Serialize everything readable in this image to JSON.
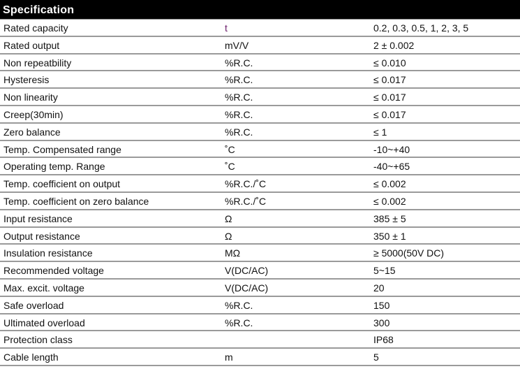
{
  "title": "Specification",
  "rows": [
    {
      "parameter": "Rated capacity",
      "unit": "t",
      "value": "0.2, 0.3, 0.5, 1, 2, 3, 5"
    },
    {
      "parameter": "Rated output",
      "unit": "mV/V",
      "value": "2 ± 0.002"
    },
    {
      "parameter": "Non repeatbility",
      "unit": "%R.C.",
      "value": "≤ 0.010"
    },
    {
      "parameter": "Hysteresis",
      "unit": "%R.C.",
      "value": "≤ 0.017"
    },
    {
      "parameter": "Non linearity",
      "unit": "%R.C.",
      "value": "≤ 0.017"
    },
    {
      "parameter": "Creep(30min)",
      "unit": "%R.C.",
      "value": "≤ 0.017"
    },
    {
      "parameter": "Zero balance",
      "unit": "%R.C.",
      "value": "≤ 1"
    },
    {
      "parameter": "Temp. Compensated range",
      "unit": "˚C",
      "value": "-10~+40"
    },
    {
      "parameter": "Operating temp. Range",
      "unit": "˚C",
      "value": "-40~+65"
    },
    {
      "parameter": "Temp. coefficient on output",
      "unit": "%R.C./˚C",
      "value": "≤ 0.002"
    },
    {
      "parameter": "Temp. coefficient on zero balance",
      "unit": "%R.C./˚C",
      "value": "≤ 0.002"
    },
    {
      "parameter": "Input resistance",
      "unit": "Ω",
      "value": "385 ± 5"
    },
    {
      "parameter": "Output resistance",
      "unit": "Ω",
      "value": "350 ± 1"
    },
    {
      "parameter": "Insulation resistance",
      "unit": "MΩ",
      "value": "≥ 5000(50V DC)"
    },
    {
      "parameter": "Recommended voltage",
      "unit": "V(DC/AC)",
      "value": "5~15"
    },
    {
      "parameter": "Max. excit. voltage",
      "unit": "V(DC/AC)",
      "value": "20"
    },
    {
      "parameter": "Safe overload",
      "unit": "%R.C.",
      "value": "150"
    },
    {
      "parameter": "Ultimated overload",
      "unit": "%R.C.",
      "value": "300"
    },
    {
      "parameter": "Protection class",
      "unit": "",
      "value": "IP68"
    },
    {
      "parameter": "Cable length",
      "unit": "m",
      "value": "5"
    }
  ]
}
